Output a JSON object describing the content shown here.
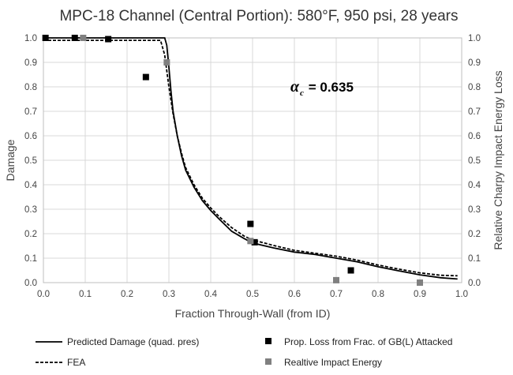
{
  "chart_data": {
    "type": "line",
    "title": "MPC-18 Channel (Central Portion): 580°F, 950 psi, 28 years",
    "xlabel": "Fraction Through-Wall (from ID)",
    "ylabel": "Damage",
    "y2label": "Relative Charpy Impact Energy Loss",
    "xlim": [
      0,
      1
    ],
    "ylim": [
      0,
      1
    ],
    "y2lim": [
      0,
      1
    ],
    "x_ticks": [
      "0.0",
      "0.1",
      "0.2",
      "0.3",
      "0.4",
      "0.5",
      "0.6",
      "0.7",
      "0.8",
      "0.9",
      "1.0"
    ],
    "y_ticks": [
      "0.0",
      "0.1",
      "0.2",
      "0.3",
      "0.4",
      "0.5",
      "0.6",
      "0.7",
      "0.8",
      "0.9",
      "1.0"
    ],
    "y2_ticks": [
      "0.0",
      "0.1",
      "0.2",
      "0.3",
      "0.4",
      "0.5",
      "0.6",
      "0.7",
      "0.8",
      "0.9",
      "1.0"
    ],
    "grid": true,
    "legend_position": "bottom",
    "annotation": {
      "symbol": "α",
      "subscript": "c",
      "text": " = 0.635"
    },
    "series": [
      {
        "name": "Predicted Damage (quad. pres)",
        "kind": "line",
        "style": "solid",
        "color": "#000000",
        "x": [
          0.0,
          0.1,
          0.2,
          0.29,
          0.295,
          0.3,
          0.305,
          0.31,
          0.32,
          0.33,
          0.34,
          0.36,
          0.38,
          0.4,
          0.42,
          0.45,
          0.48,
          0.5,
          0.55,
          0.6,
          0.65,
          0.7,
          0.75,
          0.8,
          0.85,
          0.9,
          0.95,
          0.99
        ],
        "y": [
          1.0,
          1.0,
          1.0,
          1.0,
          0.97,
          0.88,
          0.78,
          0.7,
          0.6,
          0.52,
          0.46,
          0.39,
          0.335,
          0.295,
          0.26,
          0.21,
          0.18,
          0.162,
          0.142,
          0.125,
          0.115,
          0.1,
          0.085,
          0.065,
          0.048,
          0.032,
          0.02,
          0.015
        ]
      },
      {
        "name": "FEA",
        "kind": "line",
        "style": "dashed",
        "color": "#000000",
        "x": [
          0.0,
          0.1,
          0.2,
          0.28,
          0.29,
          0.3,
          0.31,
          0.32,
          0.33,
          0.34,
          0.36,
          0.38,
          0.4,
          0.42,
          0.45,
          0.48,
          0.5,
          0.55,
          0.6,
          0.65,
          0.7,
          0.75,
          0.8,
          0.85,
          0.9,
          0.95,
          0.99
        ],
        "y": [
          0.99,
          0.99,
          0.99,
          0.99,
          0.93,
          0.8,
          0.69,
          0.6,
          0.53,
          0.47,
          0.4,
          0.345,
          0.305,
          0.27,
          0.225,
          0.19,
          0.175,
          0.152,
          0.132,
          0.12,
          0.108,
          0.092,
          0.072,
          0.055,
          0.04,
          0.03,
          0.028
        ]
      },
      {
        "name": "Prop. Loss from Frac. of GB(L) Attacked",
        "kind": "scatter",
        "marker": "square",
        "color": "#000000",
        "x": [
          0.005,
          0.075,
          0.155,
          0.245,
          0.495,
          0.505,
          0.735,
          0.9
        ],
        "y": [
          1.0,
          1.0,
          0.995,
          0.84,
          0.24,
          0.165,
          0.05,
          0.0
        ]
      },
      {
        "name": "Realtive Impact Energy",
        "kind": "scatter",
        "marker": "square",
        "color": "#808080",
        "x": [
          0.095,
          0.295,
          0.495,
          0.7,
          0.9
        ],
        "y": [
          1.0,
          0.9,
          0.17,
          0.01,
          0.0
        ]
      }
    ]
  }
}
